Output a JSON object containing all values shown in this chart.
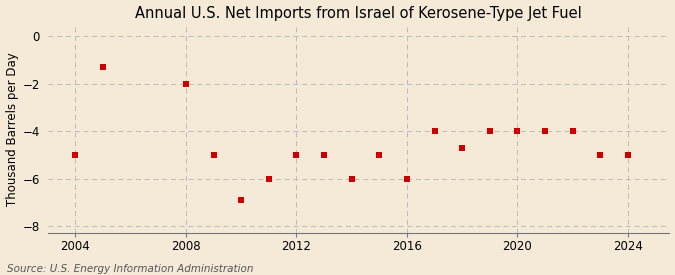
{
  "title": "Annual U.S. Net Imports from Israel of Kerosene-Type Jet Fuel",
  "ylabel": "Thousand Barrels per Day",
  "source": "Source: U.S. Energy Information Administration",
  "background_color": "#f5ead8",
  "plot_bg_color": "#f5ead8",
  "marker_color": "#cc0000",
  "marker_size": 4,
  "years": [
    2004,
    2005,
    2008,
    2009,
    2010,
    2011,
    2012,
    2013,
    2014,
    2015,
    2016,
    2017,
    2018,
    2019,
    2020,
    2021,
    2022,
    2023,
    2024
  ],
  "values": [
    -5.0,
    -1.3,
    -2.0,
    -5.0,
    -6.9,
    -6.0,
    -5.0,
    -5.0,
    -6.0,
    -5.0,
    -6.0,
    -4.0,
    -4.7,
    -4.0,
    -4.0,
    -4.0,
    -4.0,
    -5.0,
    -5.0
  ],
  "xlim": [
    2003.0,
    2025.5
  ],
  "ylim": [
    -8.3,
    0.5
  ],
  "yticks": [
    0,
    -2,
    -4,
    -6,
    -8
  ],
  "xticks": [
    2004,
    2008,
    2012,
    2016,
    2020,
    2024
  ],
  "grid_color": "#bbbbbb",
  "title_fontsize": 10.5,
  "label_fontsize": 8.5,
  "tick_fontsize": 8.5,
  "source_fontsize": 7.5
}
